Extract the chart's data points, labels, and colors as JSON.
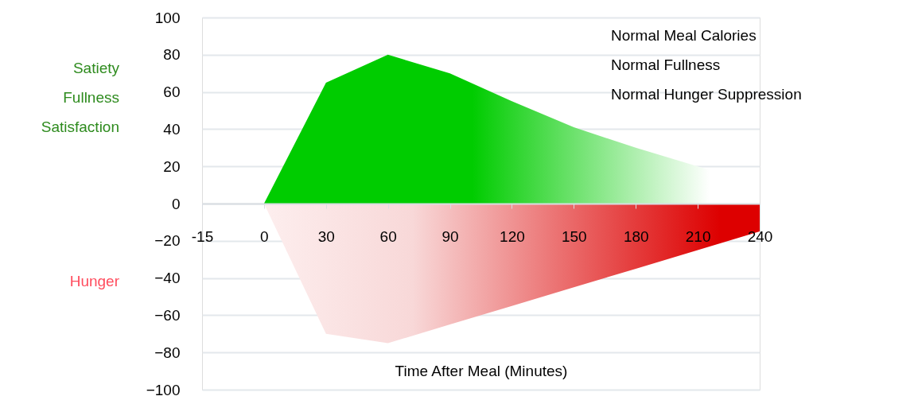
{
  "chart_data": {
    "type": "area",
    "categories": [
      "-15",
      "0",
      "30",
      "60",
      "90",
      "120",
      "150",
      "180",
      "210",
      "240"
    ],
    "series": [
      {
        "color": "#00cc00",
        "values": [
          null,
          0,
          65,
          80,
          70,
          55,
          41,
          30,
          20,
          10
        ]
      },
      {
        "color": "#dd0000",
        "values": [
          null,
          0,
          -70,
          -75,
          -65,
          -55,
          -45,
          -35,
          -25,
          -15
        ]
      }
    ],
    "ylim": [
      -100,
      100
    ],
    "yticks": [
      -100,
      -80,
      -60,
      -40,
      -20,
      0,
      20,
      40,
      60,
      80,
      100
    ],
    "xlabel": "Time  After Meal (Minutes)",
    "ylabel": "Satiety\nFullness\nSatisfaction",
    "annotations": [
      "Hunger",
      "Normal Meal Calories",
      "Normal Fullness",
      "Normal Hunger Suppression"
    ],
    "grid": "y"
  }
}
